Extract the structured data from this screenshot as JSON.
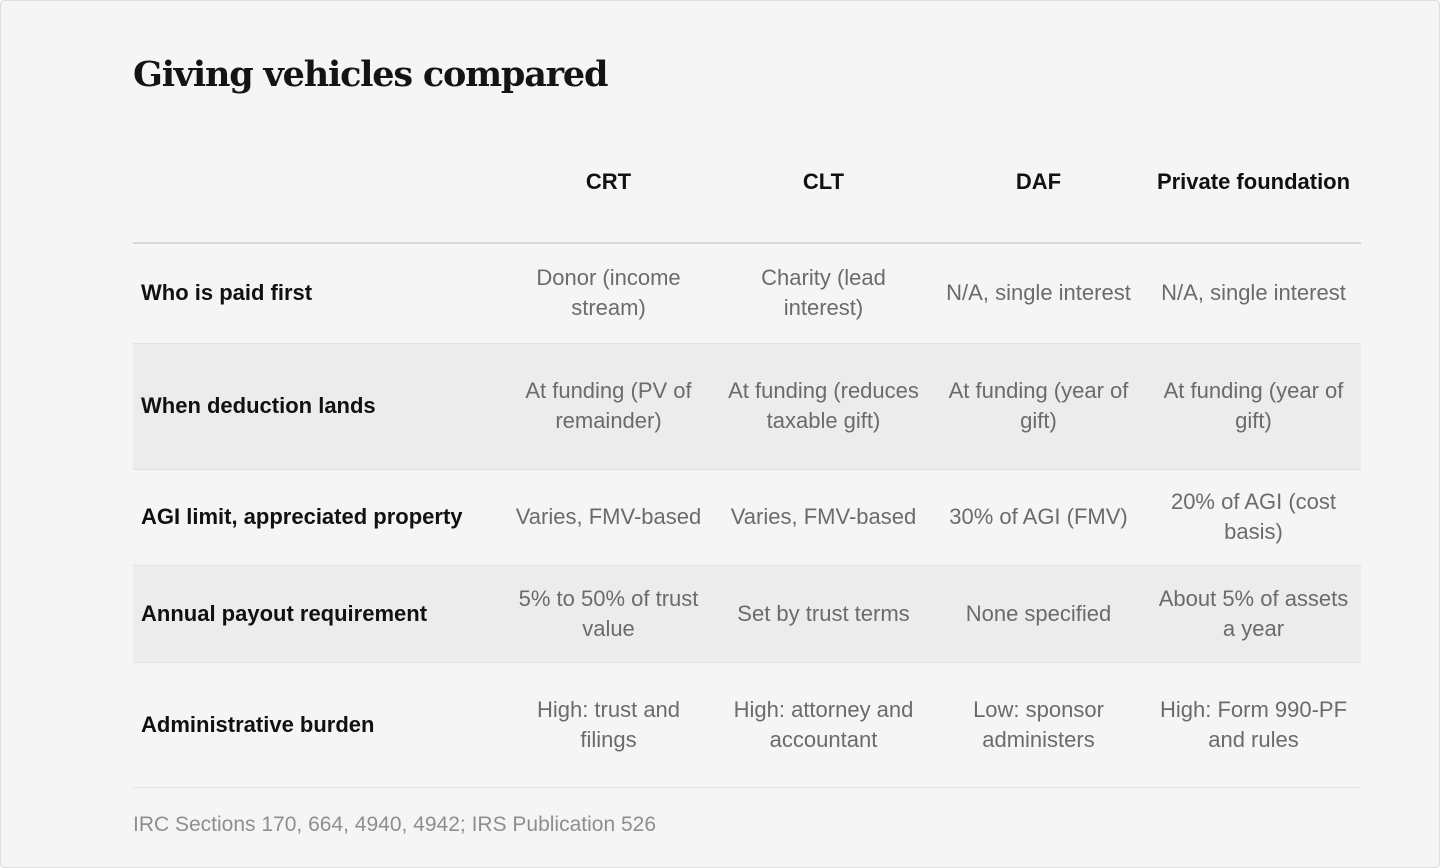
{
  "title": "Giving vehicles compared",
  "table": {
    "columns": [
      "",
      "CRT",
      "CLT",
      "DAF",
      "Private foundation"
    ],
    "rows": [
      {
        "label": "Who is paid first",
        "values": [
          "Donor (income stream)",
          "Charity (lead interest)",
          "N/A, single interest",
          "N/A, single interest"
        ]
      },
      {
        "label": "When deduction lands",
        "values": [
          "At funding (PV of remainder)",
          "At funding (reduces taxable gift)",
          "At funding (year of gift)",
          "At funding (year of gift)"
        ]
      },
      {
        "label": "AGI limit, appreciated property",
        "values": [
          "Varies, FMV-based",
          "Varies, FMV-based",
          "30% of AGI (FMV)",
          "20% of AGI (cost basis)"
        ]
      },
      {
        "label": "Annual payout requirement",
        "values": [
          "5% to 50% of trust value",
          "Set by trust terms",
          "None specified",
          "About 5% of assets a year"
        ]
      },
      {
        "label": "Administrative burden",
        "values": [
          "High: trust and filings",
          "High: attorney and accountant",
          "Low: sponsor administers",
          "High: Form 990-PF and rules"
        ]
      }
    ]
  },
  "source": "IRC Sections 170, 664, 4940, 4942; IRS Publication 526"
}
